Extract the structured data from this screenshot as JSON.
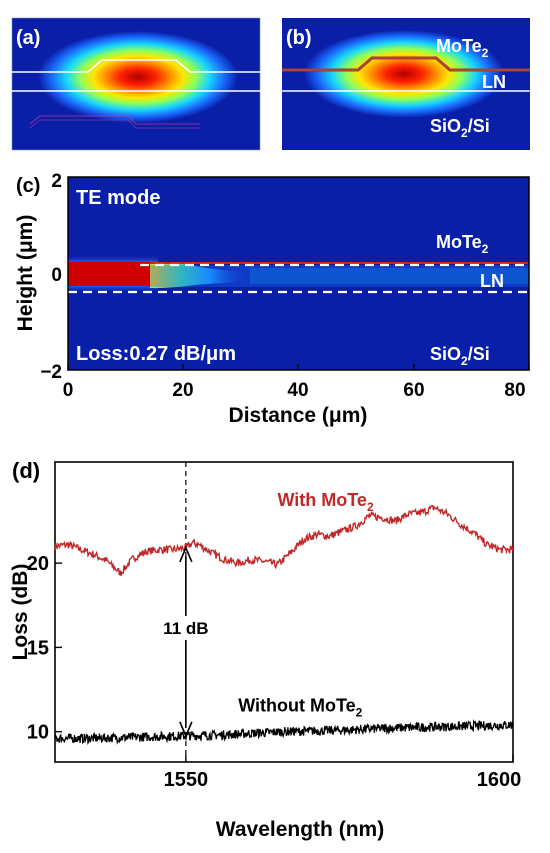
{
  "panel_a": {
    "letter": "(a)"
  },
  "panel_b": {
    "letter": "(b)",
    "labels": {
      "top": "MoTe",
      "top_sub": "2",
      "mid": "LN",
      "bot": "SiO",
      "bot_sub": "2",
      "bot_rest": "/Si"
    }
  },
  "panel_c": {
    "letter": "(c)",
    "mode_label": "TE mode",
    "loss_label": "Loss:0.27 dB/μm",
    "labels": {
      "top": "MoTe",
      "top_sub": "2",
      "mid": "LN",
      "bot": "SiO",
      "bot_sub": "2",
      "bot_rest": "/Si"
    },
    "xlabel": "Distance (μm)",
    "ylabel": "Height (μm)",
    "xticks": [
      "0",
      "20",
      "40",
      "60",
      "80"
    ],
    "yticks": [
      "2",
      "0",
      "−2"
    ]
  },
  "colors": {
    "field_background": "#0a1fa8",
    "field_core": "#ff2200",
    "with_mote2": "#c0282a",
    "without_mote2": "#000000",
    "annotation": "#c0282a"
  },
  "chart_data": {
    "type": "line",
    "panel_letter": "(d)",
    "xlabel": "Wavelength (nm)",
    "ylabel": "Loss (dB)",
    "xlim": [
      1530,
      1600
    ],
    "ylim": [
      8.2,
      26.0
    ],
    "xticks": [
      "1550",
      "1600"
    ],
    "yticks": [
      "20",
      "15",
      "10"
    ],
    "series": [
      {
        "name": "With MoTe2",
        "label_main": "With MoTe",
        "label_sub": "2",
        "x": [
          1530,
          1532,
          1534,
          1536,
          1538,
          1540,
          1542,
          1544,
          1546,
          1548,
          1550,
          1551,
          1552,
          1554,
          1556,
          1558,
          1560,
          1562,
          1564,
          1566,
          1568,
          1570,
          1572,
          1574,
          1576,
          1578,
          1580,
          1582,
          1584,
          1586,
          1588,
          1590,
          1592,
          1594,
          1596,
          1598,
          1600
        ],
        "y": [
          21.0,
          21.1,
          20.8,
          20.5,
          20.1,
          19.4,
          20.3,
          20.7,
          20.8,
          20.8,
          20.9,
          21.2,
          21.1,
          20.6,
          20.2,
          20.0,
          20.2,
          20.1,
          19.9,
          20.6,
          21.4,
          21.7,
          21.6,
          21.9,
          22.2,
          22.8,
          22.7,
          22.5,
          22.9,
          23.0,
          23.3,
          22.9,
          22.3,
          21.8,
          21.1,
          20.8,
          20.8
        ]
      },
      {
        "name": "Without MoTe2",
        "label_main": "Without MoTe",
        "label_sub": "2",
        "x": [
          1530,
          1535,
          1540,
          1545,
          1550,
          1555,
          1560,
          1565,
          1570,
          1575,
          1580,
          1585,
          1590,
          1595,
          1600
        ],
        "y": [
          9.6,
          9.6,
          9.65,
          9.7,
          9.75,
          9.8,
          9.9,
          10.0,
          10.05,
          10.1,
          10.2,
          10.25,
          10.3,
          10.35,
          10.4
        ]
      }
    ],
    "annotation": {
      "x": 1550,
      "y_low": 9.75,
      "y_high": 20.9,
      "text": "11 dB"
    }
  }
}
